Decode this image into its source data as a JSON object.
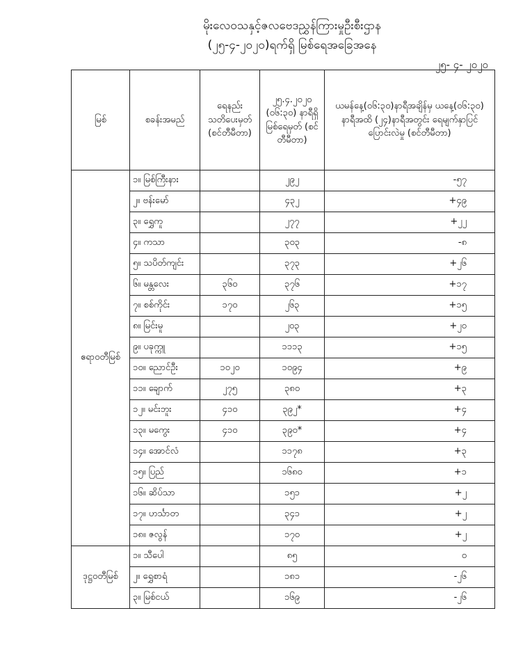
{
  "header": {
    "title": "မိုးလေဝသနှင့်ဇလဗေဒညွှန်ကြားမှုဦးစီးဌာန",
    "subtitle": "(၂၅-၄-၂၀၂၀)ရက်ရှိ မြစ်ရေအခြေအနေ",
    "date": "၂၅- ၄- ၂၀၂၀"
  },
  "table": {
    "columns": [
      "မြစ်",
      "စခန်းအမည်",
      "ရေနည်း သတိပေးမှတ် (စင်တီမီတာ)",
      "၂၅.၄.၂၀၂၀ (၀၆:၃၀) နာရီရှိ မြစ်ရေမှတ် (စင်တီမီတာ)",
      "ယမန်နေ့(၀၆:၃၀)နာရီအချိန်မှ ယနေ့(၀၆:၃၀) နာရီအထိ (၂၄)နာရီအတွင်း ရေမျက်နှာပြင်ပြောင်းလဲမှု (စင်တီမီတာ)"
    ],
    "groups": [
      {
        "river": "ဧရာဝတီမြစ်",
        "rows": [
          {
            "station": "၁။ မြစ်ကြီးနား",
            "warning": "",
            "level": "၂၉၂",
            "change": "-၅၇"
          },
          {
            "station": "၂။ ဗန်းမော်",
            "warning": "",
            "level": "၄၃၂",
            "change": "+၄၉"
          },
          {
            "station": "၃။ ရွှေကူ",
            "warning": "",
            "level": "၂၇၇",
            "change": "+၂၂"
          },
          {
            "station": "၄။ ကသာ",
            "warning": "",
            "level": "၃၀၃",
            "change": "-၈"
          },
          {
            "station": "၅။ သပိတ်ကျင်း",
            "warning": "",
            "level": "၃၇၃",
            "change": "+၂၆"
          },
          {
            "station": "၆။ မန္တလေး",
            "warning": "၃၆၀",
            "level": "၃၇၆",
            "change": "+၁၇"
          },
          {
            "station": "၇။ စစ်ကိုင်း",
            "warning": "၁၇၀",
            "level": "၂၆၃",
            "change": "+၁၅"
          },
          {
            "station": "၈။ မြင်းမူ",
            "warning": "",
            "level": "၂၀၃",
            "change": "+၂၀"
          },
          {
            "station": "၉။ ပခုက္ကူ",
            "warning": "",
            "level": "၁၁၁၃",
            "change": "+၁၅"
          },
          {
            "station": "၁၀။ ညောင်ဦး",
            "warning": "၁၀၂၀",
            "level": "၁၀၉၄",
            "change": "+၉"
          },
          {
            "station": "၁၁။ ချောက်",
            "warning": "၂၇၅",
            "level": "၃၈၀",
            "change": "+၃"
          },
          {
            "station": "၁၂။ မင်းဘူး",
            "warning": "၄၁၀",
            "level": "၃၉၂*",
            "change": "+၄"
          },
          {
            "station": "၁၃။ မကွေး",
            "warning": "၄၁၀",
            "level": "၃၉၀*",
            "change": "+၄"
          },
          {
            "station": "၁၄။ အောင်လံ",
            "warning": "",
            "level": "၁၁၇၈",
            "change": "+၃"
          },
          {
            "station": "၁၅။ ပြည်",
            "warning": "",
            "level": "၁၆၈၀",
            "change": "+၁"
          },
          {
            "station": "၁၆။ ဆိပ်သာ",
            "warning": "",
            "level": "၁၅၁",
            "change": "+၂"
          },
          {
            "station": "၁၇။ ဟင်္သာတ",
            "warning": "",
            "level": "၃၄၁",
            "change": "+၂"
          },
          {
            "station": "၁၈။ ဇလွန်",
            "warning": "",
            "level": "၁၇၀",
            "change": "+၂"
          }
        ]
      },
      {
        "river": "ဒုဋ္ဌဝတီမြစ်",
        "rows": [
          {
            "station": "၁။ သီပေါ",
            "warning": "",
            "level": "၈၅",
            "change": "၀"
          },
          {
            "station": "၂။ ရွှေစာရံ",
            "warning": "",
            "level": "၁၈၁",
            "change": "-၂၆"
          },
          {
            "station": "၃။ မြစ်ငယ်",
            "warning": "",
            "level": "၁၆၉",
            "change": "-၂၆"
          }
        ]
      }
    ]
  }
}
